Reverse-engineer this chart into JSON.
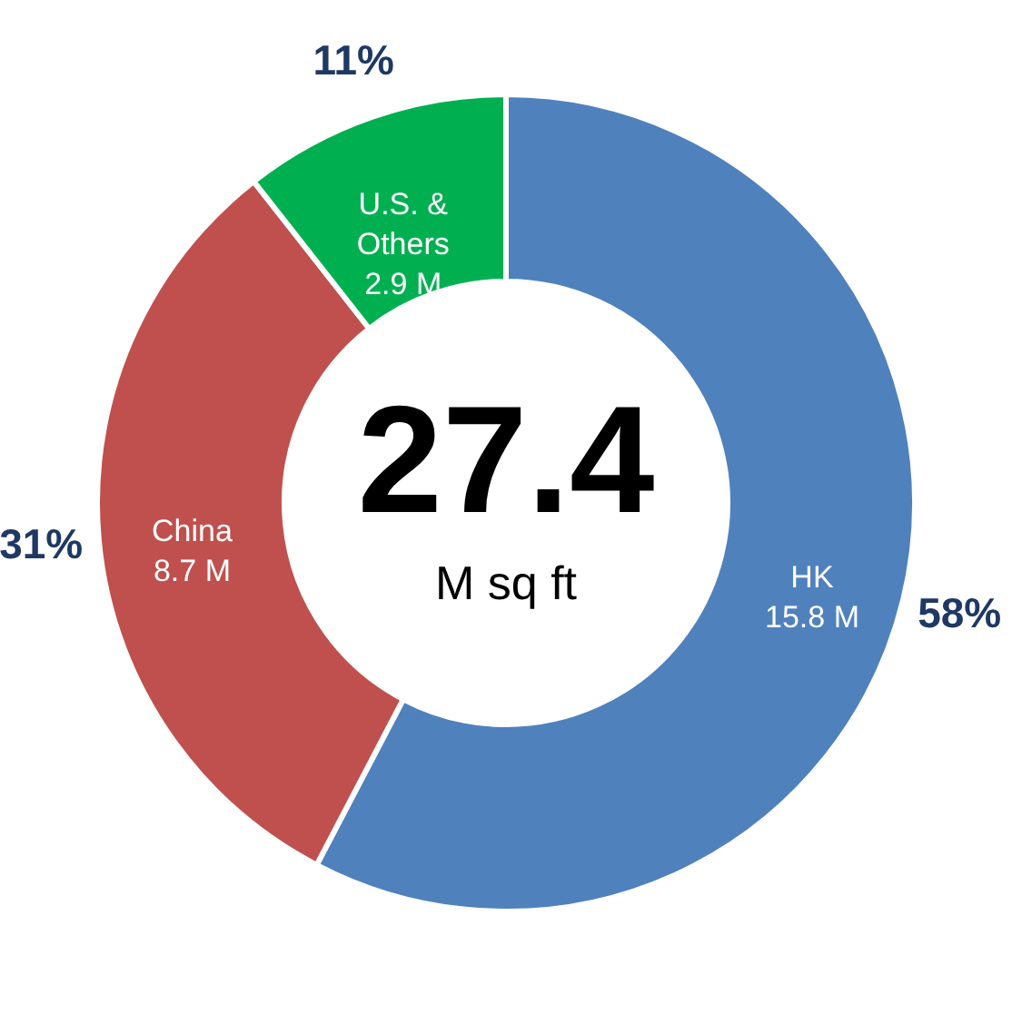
{
  "chart_data": {
    "type": "donut",
    "categories": [
      "HK",
      "China",
      "U.S. & Others"
    ],
    "values": [
      15.8,
      8.7,
      2.9
    ],
    "colors": [
      "#4f81bd",
      "#c0504d",
      "#00b050"
    ],
    "value_labels": [
      "15.8 M",
      "8.7 M",
      "2.9 M"
    ],
    "annotations": [
      {
        "text": "58%",
        "x": "HK"
      },
      {
        "text": "31%",
        "x": "China"
      },
      {
        "text": "11%",
        "x": "U.S. & Others"
      },
      "27.4",
      "M sq ft"
    ]
  }
}
